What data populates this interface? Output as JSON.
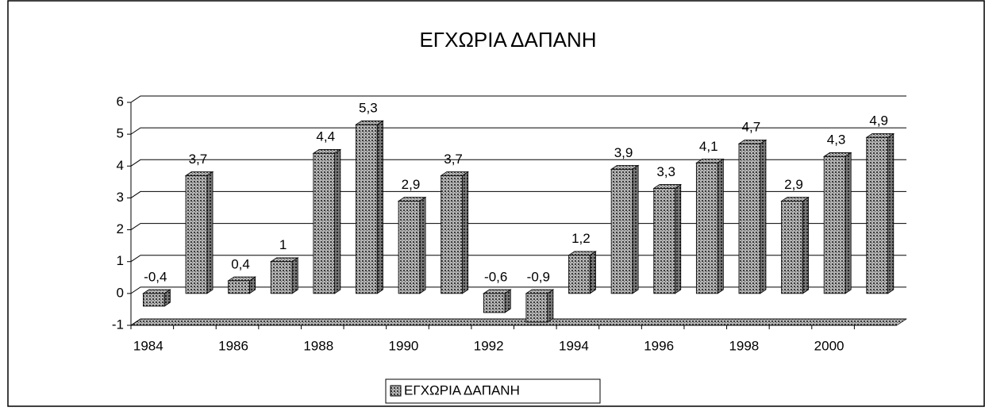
{
  "chart_data": {
    "type": "bar",
    "title": "ΕΓΧΩΡΙΑ ΔΑΠΑΝΗ",
    "categories": [
      "1984",
      null,
      "1986",
      null,
      "1988",
      null,
      "1990",
      null,
      "1992",
      null,
      "1994",
      null,
      "1996",
      null,
      "1998",
      null,
      "2000",
      null
    ],
    "series": [
      {
        "name": "ΕΓΧΩΡΙΑ ΔΑΠΑΝΗ",
        "color": "#9a9a9a",
        "values": [
          -0.4,
          3.7,
          0.4,
          1,
          4.4,
          5.3,
          2.9,
          3.7,
          -0.6,
          -0.9,
          1.2,
          3.9,
          3.3,
          4.1,
          4.7,
          2.9,
          4.3,
          4.9
        ],
        "value_labels": [
          "-0,4",
          "3,7",
          "0,4",
          "1",
          "4,4",
          "5,3",
          "2,9",
          "3,7",
          "-0,6",
          "-0,9",
          "1,2",
          "3,9",
          "3,3",
          "4,1",
          "4,7",
          "2,9",
          "4,3",
          "4,9"
        ]
      }
    ],
    "ylim": [
      -1,
      6
    ],
    "yticks": [
      -1,
      0,
      1,
      2,
      3,
      4,
      5,
      6
    ],
    "grid": true,
    "legend": "bottom"
  }
}
